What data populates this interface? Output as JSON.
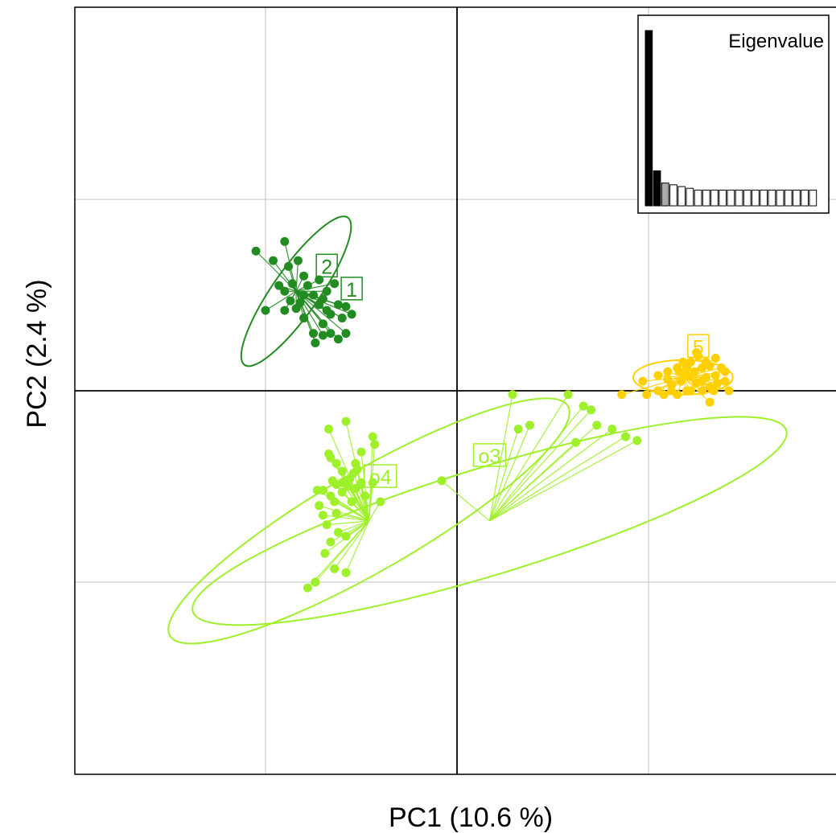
{
  "chart_data": {
    "type": "scatter",
    "title": "",
    "xlabel": "PC1 (10.6 %)",
    "ylabel": "PC2 (2.4 %)",
    "xlim": [
      -2,
      2
    ],
    "ylim": [
      -2,
      2
    ],
    "grid": true,
    "axes_through_origin": true,
    "groups": [
      {
        "label": "1",
        "color": "#228B22",
        "ellipse": {
          "cx": -0.84,
          "cy": 0.52,
          "rx": 0.47,
          "ry": 0.12,
          "angle_deg": -55
        },
        "label_pos": [
          -0.55,
          0.53
        ],
        "points": [
          [
            -1.05,
            0.73
          ],
          [
            -0.9,
            0.78
          ],
          [
            -0.96,
            0.68
          ],
          [
            -0.88,
            0.65
          ],
          [
            -0.83,
            0.68
          ],
          [
            -0.8,
            0.6
          ],
          [
            -0.86,
            0.56
          ],
          [
            -0.93,
            0.55
          ],
          [
            -0.9,
            0.52
          ],
          [
            -0.87,
            0.47
          ],
          [
            -0.8,
            0.5
          ],
          [
            -0.78,
            0.55
          ],
          [
            -0.75,
            0.5
          ],
          [
            -0.72,
            0.45
          ],
          [
            -0.68,
            0.42
          ],
          [
            -0.7,
            0.48
          ],
          [
            -0.66,
            0.4
          ],
          [
            -0.62,
            0.45
          ],
          [
            -0.6,
            0.38
          ],
          [
            -0.66,
            0.3
          ],
          [
            -0.7,
            0.29
          ],
          [
            -0.62,
            0.27
          ],
          [
            -0.58,
            0.3
          ],
          [
            -0.8,
            0.38
          ],
          [
            -0.84,
            0.43
          ],
          [
            -0.9,
            0.42
          ],
          [
            -1.0,
            0.42
          ],
          [
            -0.75,
            0.3
          ],
          [
            -0.64,
            0.56
          ],
          [
            -0.72,
            0.58
          ],
          [
            -0.82,
            0.46
          ],
          [
            -0.68,
            0.52
          ],
          [
            -0.74,
            0.25
          ],
          [
            -0.58,
            0.44
          ],
          [
            -0.55,
            0.4
          ],
          [
            -0.7,
            0.35
          ]
        ]
      },
      {
        "label": "2",
        "color": "#228B22",
        "label_pos": [
          -0.68,
          0.65
        ],
        "points": []
      },
      {
        "label": "5",
        "color": "#FFD000",
        "ellipse": {
          "cx": 1.18,
          "cy": 0.07,
          "rx": 0.26,
          "ry": 0.09,
          "angle_deg": 0
        },
        "label_pos": [
          1.26,
          0.23
        ],
        "points": [
          [
            0.97,
            0.05
          ],
          [
            1.05,
            0.08
          ],
          [
            1.1,
            0.1
          ],
          [
            1.12,
            0.03
          ],
          [
            1.15,
            0.12
          ],
          [
            1.17,
            0.05
          ],
          [
            1.2,
            0.08
          ],
          [
            1.22,
            0.15
          ],
          [
            1.24,
            0.1
          ],
          [
            1.25,
            0.04
          ],
          [
            1.28,
            0.12
          ],
          [
            1.3,
            0.07
          ],
          [
            1.32,
            0.02
          ],
          [
            1.35,
            0.08
          ],
          [
            1.38,
            0.12
          ],
          [
            1.4,
            0.05
          ],
          [
            1.26,
            0.18
          ],
          [
            1.28,
            0.0
          ],
          [
            1.2,
            0.0
          ],
          [
            1.15,
            -0.02
          ],
          [
            1.32,
            -0.06
          ],
          [
            1.42,
            0.0
          ],
          [
            1.05,
            0.0
          ],
          [
            1.08,
            -0.02
          ],
          [
            1.25,
            0.2
          ],
          [
            1.18,
            0.15
          ],
          [
            1.35,
            0.17
          ],
          [
            1.3,
            0.15
          ],
          [
            1.22,
            0.0
          ],
          [
            1.4,
            0.1
          ],
          [
            1.12,
            0.0
          ],
          [
            0.86,
            -0.02
          ],
          [
            0.99,
            -0.02
          ],
          [
            1.28,
            0.05
          ],
          [
            1.34,
            0.0
          ],
          [
            1.2,
            0.12
          ],
          [
            1.1,
            0.06
          ],
          [
            1.16,
            0.1
          ],
          [
            1.32,
            0.13
          ],
          [
            1.36,
            0.04
          ]
        ]
      },
      {
        "label": "o3",
        "color": "#9EF02A",
        "ellipse": {
          "cx": 0.17,
          "cy": -0.68,
          "rx": 1.62,
          "ry": 0.28,
          "angle_deg": -17
        },
        "label_pos": [
          0.17,
          -0.34
        ],
        "points": [
          [
            0.29,
            -0.02
          ],
          [
            0.58,
            -0.02
          ],
          [
            0.38,
            -0.18
          ],
          [
            0.32,
            -0.2
          ],
          [
            0.66,
            -0.08
          ],
          [
            0.7,
            -0.1
          ],
          [
            0.73,
            -0.18
          ],
          [
            0.81,
            -0.2
          ],
          [
            0.62,
            -0.27
          ],
          [
            0.94,
            -0.26
          ],
          [
            0.88,
            -0.24
          ],
          [
            -0.08,
            -0.47
          ]
        ]
      },
      {
        "label": "o4",
        "color": "#9EF02A",
        "ellipse": {
          "cx": -0.46,
          "cy": -0.68,
          "rx": 1.2,
          "ry": 0.26,
          "angle_deg": -30
        },
        "label_pos": [
          -0.4,
          -0.45
        ],
        "points": [
          [
            -0.58,
            -0.16
          ],
          [
            -0.67,
            -0.2
          ],
          [
            -0.44,
            -0.24
          ],
          [
            -0.43,
            -0.28
          ],
          [
            -0.5,
            -0.32
          ],
          [
            -0.67,
            -0.33
          ],
          [
            -0.63,
            -0.38
          ],
          [
            -0.53,
            -0.38
          ],
          [
            -0.52,
            -0.41
          ],
          [
            -0.6,
            -0.42
          ],
          [
            -0.65,
            -0.47
          ],
          [
            -0.63,
            -0.49
          ],
          [
            -0.57,
            -0.5
          ],
          [
            -0.7,
            -0.52
          ],
          [
            -0.53,
            -0.51
          ],
          [
            -0.6,
            -0.53
          ],
          [
            -0.66,
            -0.55
          ],
          [
            -0.73,
            -0.52
          ],
          [
            -0.64,
            -0.58
          ],
          [
            -0.72,
            -0.6
          ],
          [
            -0.55,
            -0.58
          ],
          [
            -0.5,
            -0.49
          ],
          [
            -0.44,
            -0.48
          ],
          [
            -0.4,
            -0.58
          ],
          [
            -0.63,
            -0.64
          ],
          [
            -0.7,
            -0.65
          ],
          [
            -0.68,
            -0.7
          ],
          [
            -0.62,
            -0.74
          ],
          [
            -0.66,
            -0.79
          ],
          [
            -0.58,
            -0.76
          ],
          [
            -0.69,
            -0.85
          ],
          [
            -0.64,
            -0.93
          ],
          [
            -0.58,
            -0.95
          ],
          [
            -0.78,
            -1.03
          ],
          [
            -0.74,
            -1.0
          ],
          [
            -0.5,
            -0.48
          ],
          [
            -0.54,
            -0.43
          ],
          [
            -0.6,
            -0.48
          ],
          [
            -0.56,
            -0.46
          ],
          [
            -0.48,
            -0.55
          ],
          [
            -0.66,
            -0.35
          ]
        ]
      }
    ],
    "inset": {
      "title": "Eigenvalue",
      "position": "top-right",
      "values": [
        100,
        20,
        13,
        12,
        11,
        10,
        9,
        9,
        9,
        9,
        9,
        9,
        9,
        9,
        9,
        9,
        9,
        9,
        9,
        9,
        9
      ],
      "n_black": 2,
      "n_gray": 1
    }
  }
}
